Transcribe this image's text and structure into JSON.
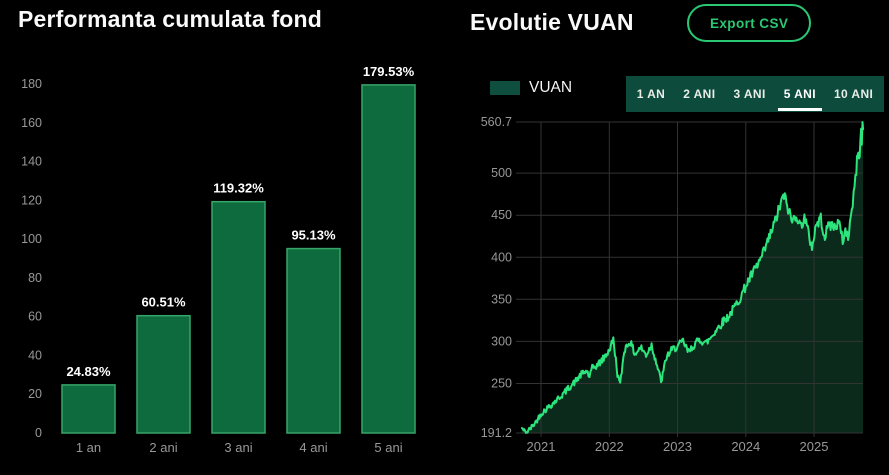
{
  "page": {
    "background": "#000000"
  },
  "export_button": {
    "label": "Export CSV"
  },
  "legend": {
    "label": "VUAN"
  },
  "tabs": {
    "items": [
      {
        "label": "1 AN",
        "active": false
      },
      {
        "label": "2 ANI",
        "active": false
      },
      {
        "label": "3 ANI",
        "active": false
      },
      {
        "label": "5 ANI",
        "active": true
      },
      {
        "label": "10 ANI",
        "active": false
      }
    ]
  },
  "colors": {
    "background": "#000000",
    "text_primary": "#fafafa",
    "tick_text": "#989898",
    "bar_fill": "#0d6b3e",
    "bar_border": "#38a568",
    "line": "#2ce57d",
    "area_fill": "#0b2a1c",
    "grid": "#333333",
    "accent_green": "#2bc874",
    "tab_bar_bg": "#0d4b3d",
    "legend_swatch": "#0e4f3f",
    "value_label": "#ffffff"
  },
  "chart_data": [
    {
      "type": "bar",
      "title": "Performanta cumulata fond",
      "categories": [
        "1 an",
        "2 ani",
        "3 ani",
        "4 ani",
        "5 ani"
      ],
      "values": [
        24.83,
        60.51,
        119.32,
        95.13,
        179.53
      ],
      "value_labels": [
        "24.83%",
        "60.51%",
        "119.32%",
        "95.13%",
        "179.53%"
      ],
      "xlabel": "",
      "ylabel": "",
      "ylim": [
        0,
        180
      ],
      "yticks": [
        0,
        20,
        40,
        60,
        80,
        100,
        120,
        140,
        160,
        180
      ],
      "grid": false
    },
    {
      "type": "area",
      "title": "Evolutie VUAN",
      "series_name": "VUAN",
      "ylim": [
        191.2,
        560.7
      ],
      "yticks": [
        191.2,
        250,
        300,
        350,
        400,
        450,
        500,
        560.7
      ],
      "xticks": [
        2021,
        2022,
        2023,
        2024,
        2025
      ],
      "x_range": [
        2020.72,
        2025.72
      ],
      "grid": true,
      "legend_position": "top-left",
      "jitter": 0.016,
      "anchors_t_value": [
        [
          2020.72,
          197
        ],
        [
          2020.78,
          191.2
        ],
        [
          2020.84,
          196
        ],
        [
          2020.92,
          204
        ],
        [
          2021.0,
          214
        ],
        [
          2021.08,
          220
        ],
        [
          2021.17,
          226
        ],
        [
          2021.25,
          232
        ],
        [
          2021.33,
          238
        ],
        [
          2021.42,
          246
        ],
        [
          2021.5,
          252
        ],
        [
          2021.58,
          260
        ],
        [
          2021.67,
          265
        ],
        [
          2021.71,
          258
        ],
        [
          2021.75,
          268
        ],
        [
          2021.83,
          272
        ],
        [
          2021.92,
          280
        ],
        [
          2022.0,
          290
        ],
        [
          2022.06,
          302
        ],
        [
          2022.12,
          262
        ],
        [
          2022.16,
          248
        ],
        [
          2022.22,
          290
        ],
        [
          2022.3,
          300
        ],
        [
          2022.38,
          285
        ],
        [
          2022.46,
          293
        ],
        [
          2022.54,
          284
        ],
        [
          2022.62,
          296
        ],
        [
          2022.7,
          272
        ],
        [
          2022.76,
          252
        ],
        [
          2022.84,
          282
        ],
        [
          2022.92,
          290
        ],
        [
          2023.0,
          294
        ],
        [
          2023.08,
          300
        ],
        [
          2023.16,
          287
        ],
        [
          2023.25,
          297
        ],
        [
          2023.33,
          302
        ],
        [
          2023.42,
          298
        ],
        [
          2023.5,
          306
        ],
        [
          2023.58,
          315
        ],
        [
          2023.67,
          324
        ],
        [
          2023.75,
          330
        ],
        [
          2023.83,
          340
        ],
        [
          2023.92,
          352
        ],
        [
          2024.0,
          366
        ],
        [
          2024.08,
          378
        ],
        [
          2024.17,
          390
        ],
        [
          2024.25,
          403
        ],
        [
          2024.33,
          420
        ],
        [
          2024.42,
          440
        ],
        [
          2024.5,
          460
        ],
        [
          2024.56,
          474
        ],
        [
          2024.62,
          458
        ],
        [
          2024.68,
          442
        ],
        [
          2024.74,
          452
        ],
        [
          2024.8,
          436
        ],
        [
          2024.86,
          448
        ],
        [
          2024.92,
          428
        ],
        [
          2024.97,
          412
        ],
        [
          2025.03,
          438
        ],
        [
          2025.1,
          446
        ],
        [
          2025.16,
          424
        ],
        [
          2025.22,
          440
        ],
        [
          2025.3,
          436
        ],
        [
          2025.36,
          442
        ],
        [
          2025.42,
          420
        ],
        [
          2025.46,
          432
        ],
        [
          2025.5,
          424
        ],
        [
          2025.54,
          448
        ],
        [
          2025.58,
          472
        ],
        [
          2025.62,
          505
        ],
        [
          2025.65,
          528
        ],
        [
          2025.67,
          522
        ],
        [
          2025.69,
          548
        ],
        [
          2025.7,
          538
        ],
        [
          2025.71,
          558
        ],
        [
          2025.72,
          552
        ]
      ]
    }
  ]
}
